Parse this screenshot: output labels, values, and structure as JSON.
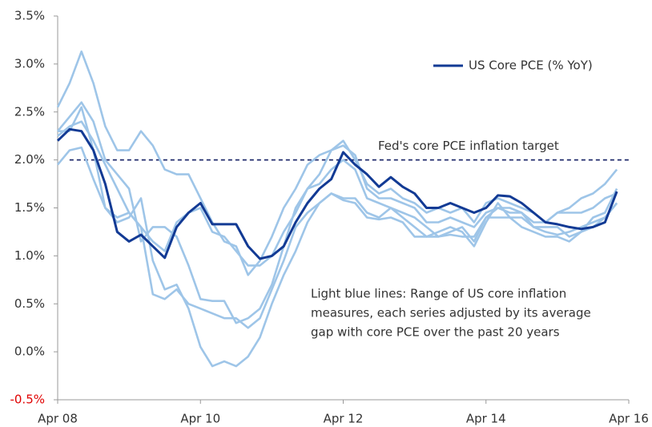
{
  "chart_data": {
    "type": "line",
    "x": [
      "2008-04",
      "2008-06",
      "2008-08",
      "2008-10",
      "2008-12",
      "2009-02",
      "2009-04",
      "2009-06",
      "2009-08",
      "2009-10",
      "2009-12",
      "2010-02",
      "2010-04",
      "2010-06",
      "2010-08",
      "2010-10",
      "2010-12",
      "2011-02",
      "2011-04",
      "2011-06",
      "2011-08",
      "2011-10",
      "2011-12",
      "2012-02",
      "2012-04",
      "2012-06",
      "2012-08",
      "2012-10",
      "2012-12",
      "2013-02",
      "2013-04",
      "2013-06",
      "2013-08",
      "2013-10",
      "2013-12",
      "2014-02",
      "2014-04",
      "2014-06",
      "2014-08",
      "2014-10",
      "2014-12",
      "2015-02",
      "2015-04",
      "2015-06",
      "2015-08",
      "2015-10",
      "2015-12",
      "2016-02"
    ],
    "series": [
      {
        "color": "#9ec5e8",
        "values": [
          2.55,
          2.8,
          3.13,
          2.8,
          2.35,
          2.1,
          2.1,
          2.3,
          2.15,
          1.9,
          1.85,
          1.85,
          1.6,
          1.35,
          1.15,
          1.1,
          0.8,
          0.95,
          1.2,
          1.5,
          1.7,
          1.95,
          2.05,
          2.1,
          2.15,
          2.05,
          1.7,
          1.6,
          1.6,
          1.55,
          1.5,
          1.35,
          1.35,
          1.4,
          1.35,
          1.3,
          1.45,
          1.5,
          1.45,
          1.45,
          1.35,
          1.35,
          1.45,
          1.5,
          1.6,
          1.65,
          1.75,
          1.9
        ]
      },
      {
        "color": "#9ec5e8",
        "values": [
          2.3,
          2.45,
          2.6,
          2.4,
          2.0,
          1.85,
          1.7,
          1.15,
          1.3,
          1.3,
          1.2,
          0.9,
          0.55,
          0.53,
          0.53,
          0.3,
          0.35,
          0.45,
          0.7,
          1.1,
          1.5,
          1.7,
          1.75,
          1.9,
          2.0,
          1.9,
          1.6,
          1.55,
          1.5,
          1.45,
          1.4,
          1.3,
          1.2,
          1.25,
          1.3,
          1.15,
          1.4,
          1.5,
          1.5,
          1.45,
          1.3,
          1.3,
          1.3,
          1.2,
          1.25,
          1.4,
          1.45,
          1.7
        ]
      },
      {
        "color": "#9ec5e8",
        "values": [
          2.3,
          2.3,
          2.55,
          2.1,
          1.5,
          1.35,
          1.4,
          1.6,
          0.95,
          0.65,
          0.7,
          0.45,
          0.05,
          -0.15,
          -0.1,
          -0.15,
          -0.05,
          0.15,
          0.5,
          0.8,
          1.05,
          1.35,
          1.55,
          1.65,
          1.6,
          1.6,
          1.45,
          1.4,
          1.5,
          1.4,
          1.3,
          1.2,
          1.25,
          1.3,
          1.25,
          1.1,
          1.35,
          1.55,
          1.4,
          1.3,
          1.25,
          1.2,
          1.2,
          1.15,
          1.25,
          1.3,
          1.4,
          1.55
        ]
      },
      {
        "color": "#9ec5e8",
        "values": [
          1.95,
          2.1,
          2.13,
          1.8,
          1.5,
          1.4,
          1.45,
          1.3,
          0.6,
          0.55,
          0.65,
          0.5,
          0.45,
          0.4,
          0.35,
          0.35,
          0.25,
          0.35,
          0.65,
          0.95,
          1.3,
          1.45,
          1.55,
          1.65,
          1.58,
          1.55,
          1.4,
          1.38,
          1.4,
          1.35,
          1.2,
          1.2,
          1.2,
          1.22,
          1.2,
          1.2,
          1.4,
          1.4,
          1.4,
          1.4,
          1.3,
          1.25,
          1.22,
          1.25,
          1.3,
          1.35,
          1.4,
          1.55
        ]
      },
      {
        "color": "#9ec5e8",
        "values": [
          2.25,
          2.35,
          2.4,
          2.2,
          1.95,
          1.7,
          1.45,
          1.3,
          1.15,
          1.05,
          1.35,
          1.45,
          1.5,
          1.25,
          1.2,
          1.05,
          0.9,
          0.9,
          1.0,
          1.25,
          1.45,
          1.7,
          1.85,
          2.1,
          2.2,
          2.0,
          1.75,
          1.65,
          1.7,
          1.6,
          1.55,
          1.45,
          1.5,
          1.45,
          1.5,
          1.35,
          1.55,
          1.6,
          1.55,
          1.5,
          1.45,
          1.35,
          1.45,
          1.45,
          1.45,
          1.5,
          1.6,
          1.65
        ]
      },
      {
        "name": "US Core PCE (% YoY)",
        "color": "#123a94",
        "values": [
          2.2,
          2.32,
          2.3,
          2.1,
          1.75,
          1.25,
          1.15,
          1.22,
          1.1,
          0.98,
          1.3,
          1.45,
          1.55,
          1.33,
          1.33,
          1.33,
          1.1,
          0.97,
          1.0,
          1.1,
          1.35,
          1.55,
          1.7,
          1.8,
          2.08,
          1.95,
          1.85,
          1.72,
          1.82,
          1.72,
          1.65,
          1.5,
          1.5,
          1.55,
          1.5,
          1.45,
          1.5,
          1.63,
          1.62,
          1.55,
          1.45,
          1.35,
          1.33,
          1.3,
          1.28,
          1.3,
          1.35,
          1.67
        ]
      }
    ],
    "target": {
      "value": 2.0,
      "start": "2008-06",
      "end": "2016-04",
      "color": "#1f2a6b",
      "label": "Fed's core PCE inflation target"
    },
    "annotation": [
      "Light blue lines: Range of US core inflation",
      "measures, each series adjusted by its average",
      "gap with core PCE over the past 20 years"
    ],
    "xlim": [
      "2008-04",
      "2016-04"
    ],
    "xticks": [
      {
        "value": "2008-04",
        "label": "Apr 08"
      },
      {
        "value": "2010-04",
        "label": "Apr 10"
      },
      {
        "value": "2012-04",
        "label": "Apr 12"
      },
      {
        "value": "2014-04",
        "label": "Apr 14"
      },
      {
        "value": "2016-04",
        "label": "Apr 16"
      }
    ],
    "ylim": [
      -0.5,
      3.5
    ],
    "yticks": [
      {
        "value": -0.5,
        "label": "-0.5%"
      },
      {
        "value": 0,
        "label": "0.0%"
      },
      {
        "value": 0.5,
        "label": "0.5%"
      },
      {
        "value": 1,
        "label": "1.0%"
      },
      {
        "value": 1.5,
        "label": "1.5%"
      },
      {
        "value": 2,
        "label": "2.0%"
      },
      {
        "value": 2.5,
        "label": "2.5%"
      },
      {
        "value": 3,
        "label": "3.0%"
      },
      {
        "value": 3.5,
        "label": "3.5%"
      }
    ],
    "negative_tick_color": "#e00000",
    "legend": "upper right",
    "grid": false
  }
}
